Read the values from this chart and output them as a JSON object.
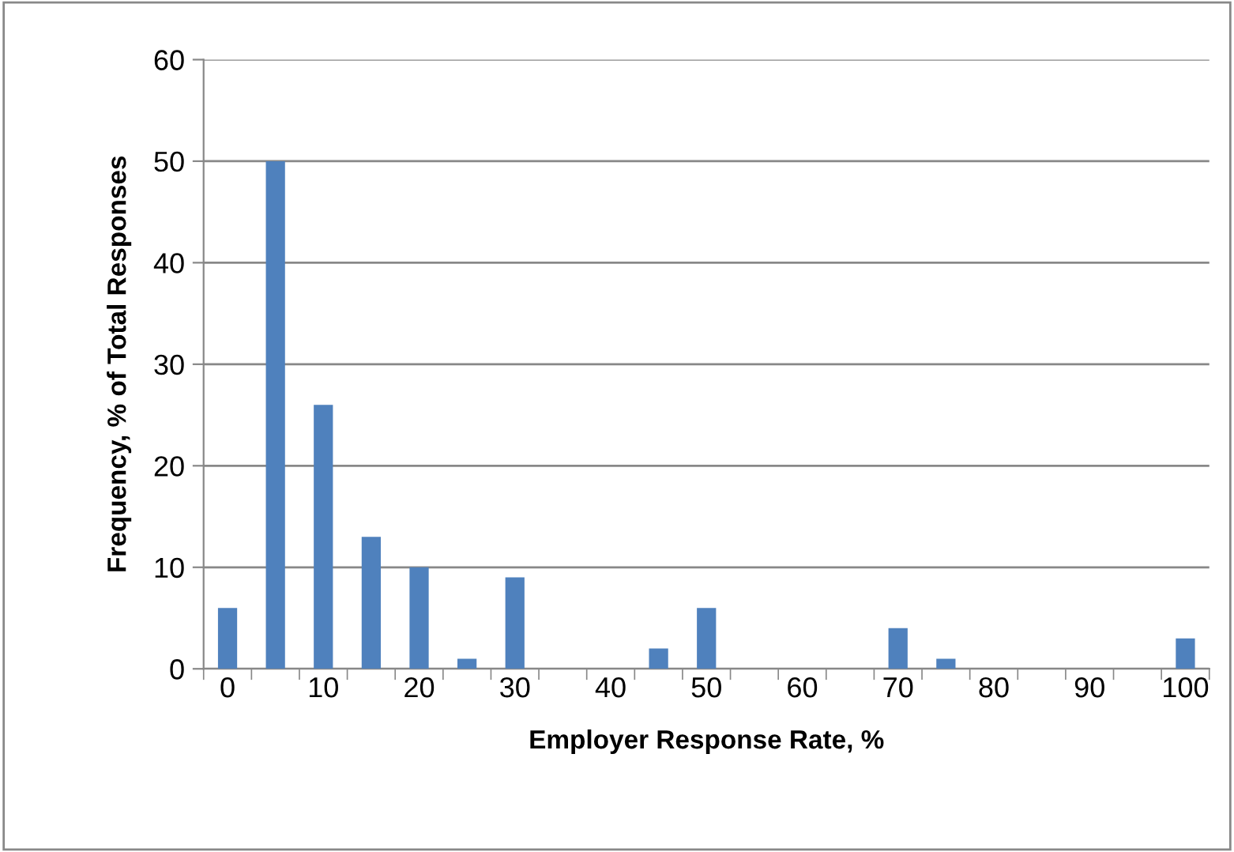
{
  "chart_data": {
    "type": "bar",
    "xlabel": "Employer Response Rate, %",
    "ylabel": "Frequency, % of Total Responses",
    "categories": [
      "0",
      null,
      "10",
      null,
      "20",
      null,
      "30",
      null,
      "40",
      null,
      "50",
      null,
      "60",
      null,
      "70",
      null,
      "80",
      null,
      "90",
      null,
      "100"
    ],
    "values": [
      6,
      50,
      26,
      13,
      10,
      1,
      9,
      0,
      0,
      2,
      6,
      0,
      0,
      0,
      4,
      1,
      0,
      0,
      0,
      0,
      3
    ],
    "color": "#4f81bd",
    "ylim": [
      0,
      60
    ],
    "yticks": [
      0,
      10,
      20,
      30,
      40,
      50,
      60
    ],
    "grid": "y"
  }
}
